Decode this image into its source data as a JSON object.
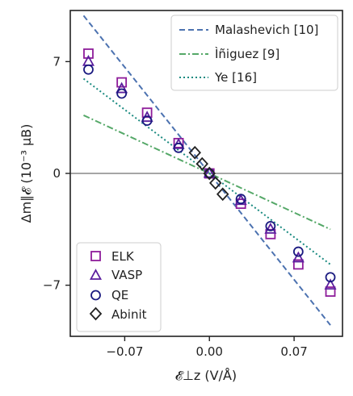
{
  "chart_data": {
    "type": "scatter",
    "xlabel": "𝓔⊥z (V/Å)",
    "ylabel": "Δm∥𝓔 (10⁻³ μB)",
    "xlim": [
      -0.115,
      0.11
    ],
    "ylim": [
      -10.2,
      10.2
    ],
    "xticks": [
      {
        "value": -0.07,
        "label": "−0.07"
      },
      {
        "value": 0.0,
        "label": "0.00"
      },
      {
        "value": 0.07,
        "label": "0.07"
      }
    ],
    "yticks": [
      {
        "value": 7,
        "label": "7"
      },
      {
        "value": 0,
        "label": "0"
      },
      {
        "value": -7,
        "label": "−7"
      }
    ],
    "zero_line": true,
    "lines": [
      {
        "name": "Malashevich [10]",
        "style": "dashed",
        "color": "#4c72b0",
        "slope": -95,
        "x_range": [
          -0.104,
          0.1
        ]
      },
      {
        "name": "Ìñiguez [9]",
        "style": "dashdot",
        "color": "#55a868",
        "slope": -35,
        "x_range": [
          -0.104,
          0.1
        ]
      },
      {
        "name": "Ye [16]",
        "style": "dotted",
        "color": "#1a8a80",
        "slope": -57,
        "x_range": [
          -0.104,
          0.1
        ]
      }
    ],
    "series": [
      {
        "name": "ELK",
        "marker": "square",
        "color": "#8e1c9a",
        "points": [
          [
            -0.1,
            7.5
          ],
          [
            -0.0725,
            5.7
          ],
          [
            -0.0515,
            3.8
          ],
          [
            -0.0255,
            1.9
          ],
          [
            0,
            0
          ],
          [
            0.026,
            -1.9
          ],
          [
            0.0505,
            -3.8
          ],
          [
            0.0735,
            -5.7
          ],
          [
            0.1,
            -7.4
          ]
        ]
      },
      {
        "name": "VASP",
        "marker": "triangle",
        "color": "#5b1f9e",
        "points": [
          [
            -0.1,
            7.0
          ],
          [
            -0.0725,
            5.3
          ],
          [
            -0.0515,
            3.5
          ],
          [
            -0.0255,
            1.8
          ],
          [
            0,
            0
          ],
          [
            0.026,
            -1.7
          ],
          [
            0.0505,
            -3.5
          ],
          [
            0.0735,
            -5.3
          ],
          [
            0.1,
            -7.0
          ]
        ]
      },
      {
        "name": "QE",
        "marker": "circle",
        "color": "#1a1a80",
        "points": [
          [
            -0.1,
            6.5
          ],
          [
            -0.0725,
            5.0
          ],
          [
            -0.0515,
            3.3
          ],
          [
            -0.0255,
            1.6
          ],
          [
            0,
            0
          ],
          [
            0.026,
            -1.6
          ],
          [
            0.0505,
            -3.3
          ],
          [
            0.0735,
            -4.9
          ],
          [
            0.1,
            -6.5
          ]
        ]
      },
      {
        "name": "Abinit",
        "marker": "diamond",
        "color": "#222222",
        "points": [
          [
            -0.012,
            1.3
          ],
          [
            -0.006,
            0.6
          ],
          [
            0,
            0
          ],
          [
            0.005,
            -0.6
          ],
          [
            0.011,
            -1.3
          ]
        ]
      }
    ],
    "legend_top": {
      "placement": "top-right",
      "entries": [
        "Malashevich [10]",
        "Ìñiguez [9]",
        "Ye [16]"
      ]
    },
    "legend_bottom": {
      "placement": "bottom-left",
      "entries": [
        "ELK",
        "VASP",
        "QE",
        "Abinit"
      ]
    }
  }
}
